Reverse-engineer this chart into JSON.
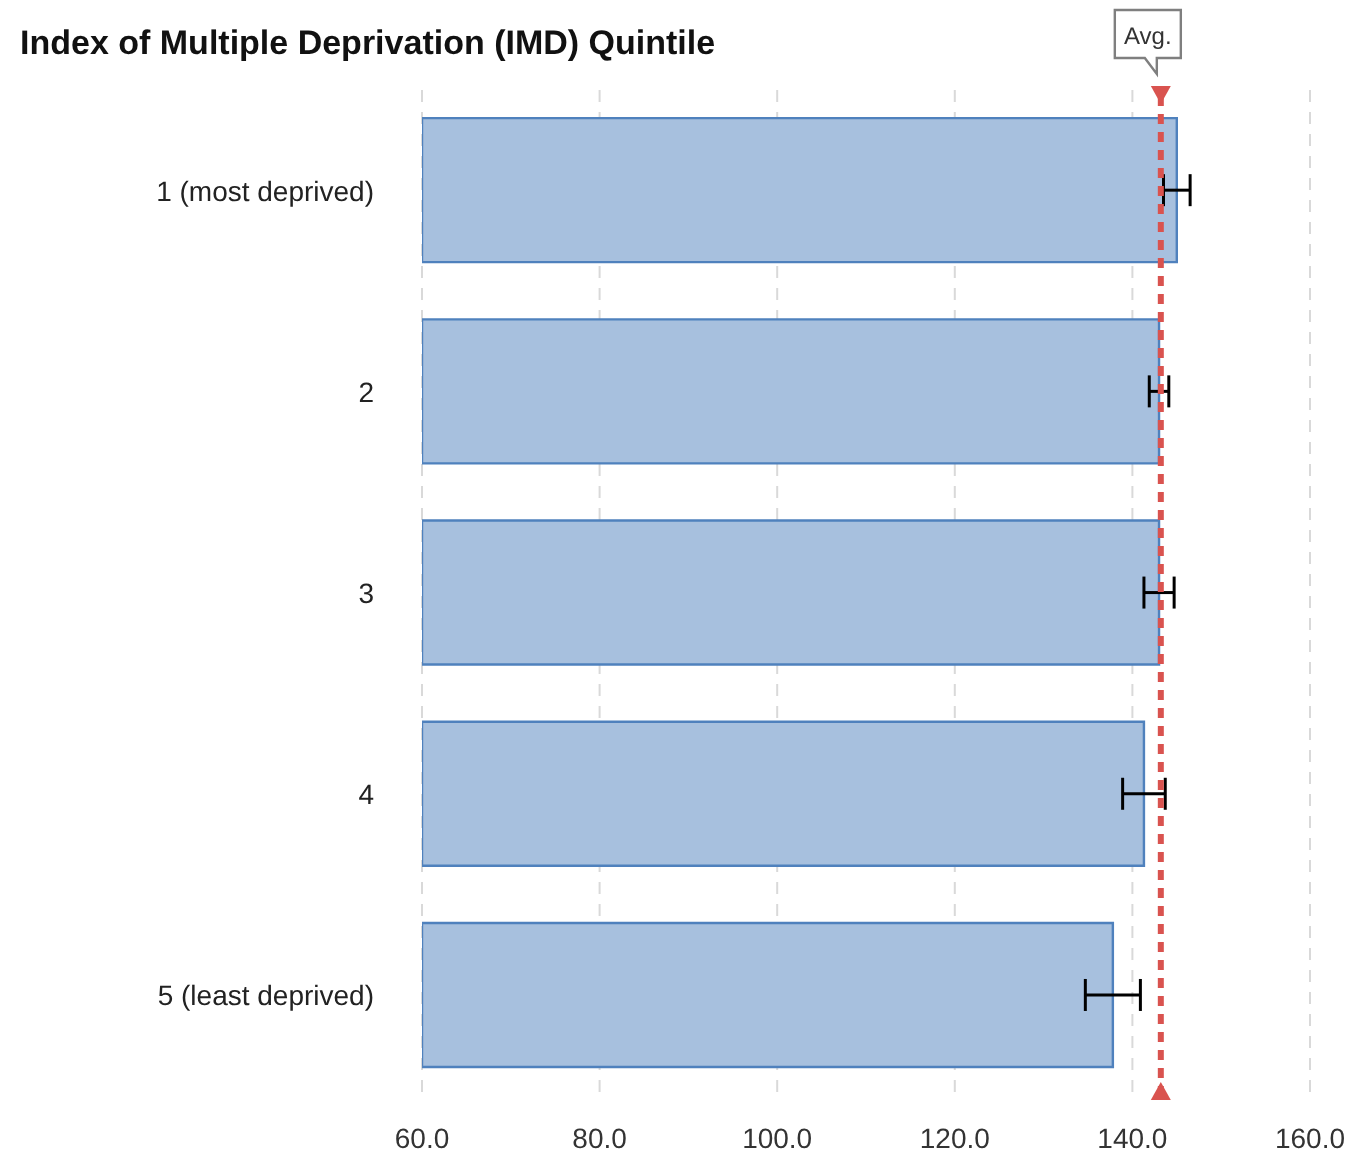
{
  "chart_data": {
    "type": "bar",
    "orientation": "horizontal",
    "title": "Index of Multiple Deprivation (IMD) Quintile",
    "categories": [
      "1 (most deprived)",
      "2",
      "3",
      "4",
      "5 (least deprived)"
    ],
    "values": [
      145.0,
      143.0,
      143.0,
      141.3,
      137.8
    ],
    "errors": [
      1.5,
      1.1,
      1.7,
      2.4,
      3.1
    ],
    "color": "#a7c0de",
    "xlim": [
      60,
      160
    ],
    "xticks": [
      {
        "value": 60,
        "label": "60.0"
      },
      {
        "value": 80,
        "label": "80.0"
      },
      {
        "value": 100,
        "label": "100.0"
      },
      {
        "value": 120,
        "label": "120.0"
      },
      {
        "value": 140,
        "label": "140.0"
      },
      {
        "value": 160,
        "label": "160.0"
      }
    ],
    "grid": "x",
    "ref_lines": [
      {
        "axis": "x",
        "value": 143.2,
        "label": "Avg.",
        "color": "#d9534f",
        "line_style": "dashed"
      }
    ]
  }
}
